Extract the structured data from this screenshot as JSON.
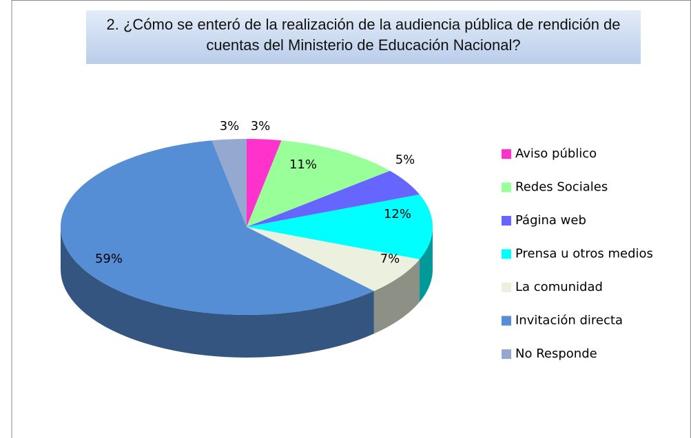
{
  "chart_data": {
    "type": "pie",
    "title": "2. ¿Cómo se enteró de la realización de la audiencia pública de rendición de cuentas del Ministerio de Educación Nacional?",
    "categories": [
      "Aviso público",
      "Redes Sociales",
      "Página web",
      "Prensa u otros medios",
      "La comunidad",
      "Invitación directa",
      "No Responde"
    ],
    "values": [
      3,
      11,
      5,
      12,
      7,
      59,
      3
    ],
    "value_labels": [
      "3%",
      "11%",
      "5%",
      "12%",
      "7%",
      "59%",
      "3%"
    ],
    "colors": [
      "#ff33cc",
      "#99ff99",
      "#6666ff",
      "#00ffff",
      "#ebf1de",
      "#558ed5",
      "#95a9d0"
    ],
    "legend": "right"
  }
}
